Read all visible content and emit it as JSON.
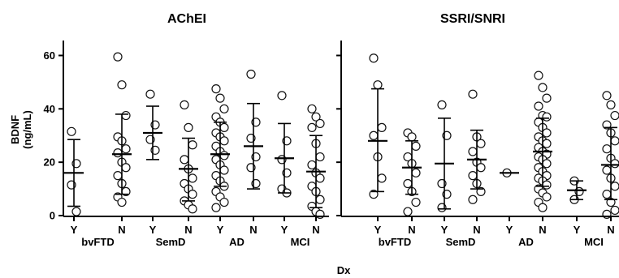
{
  "chart_data": {
    "type": "scatter",
    "ylabel_lines": [
      "BDNF",
      "(ng/mL)"
    ],
    "xlabel": "Dx",
    "ylim": [
      0,
      65
    ],
    "yticks": [
      0,
      20,
      40,
      60
    ],
    "panels": [
      {
        "title": "AChEI",
        "groups": [
          {
            "dx": "bvFTD",
            "status": "Y",
            "mean": 16,
            "sd_low": 3.5,
            "sd_high": 28.5,
            "values": [
              31.5,
              19.5,
              11.5,
              1.5
            ]
          },
          {
            "dx": "bvFTD",
            "status": "N",
            "mean": 23,
            "sd_low": 8,
            "sd_high": 38,
            "values": [
              59.5,
              49,
              37.5,
              29.5,
              28,
              25,
              23.5,
              20,
              18,
              15,
              12,
              9,
              7,
              5
            ]
          },
          {
            "dx": "SemD",
            "status": "Y",
            "mean": 31,
            "sd_low": 21,
            "sd_high": 41,
            "values": [
              45.5,
              34,
              28.5,
              24.5
            ]
          },
          {
            "dx": "SemD",
            "status": "N",
            "mean": 17.5,
            "sd_low": 5.5,
            "sd_high": 29,
            "values": [
              41.5,
              33,
              26.5,
              21,
              17.5,
              14,
              12,
              10,
              8,
              5.5,
              4,
              2.5
            ]
          },
          {
            "dx": "AD",
            "status": "Y",
            "mean": 23,
            "sd_low": 11,
            "sd_high": 35,
            "values": [
              47.5,
              44,
              40,
              37,
              35,
              33,
              31,
              29.5,
              28,
              26,
              24,
              22.5,
              21,
              19,
              17,
              15,
              13,
              11,
              9,
              7,
              5,
              3
            ]
          },
          {
            "dx": "AD",
            "status": "N",
            "mean": 26,
            "sd_low": 10,
            "sd_high": 42,
            "values": [
              53,
              35,
              29,
              22,
              18,
              12
            ]
          },
          {
            "dx": "MCI",
            "status": "Y",
            "mean": 21.5,
            "sd_low": 8.5,
            "sd_high": 34.5,
            "values": [
              45,
              28,
              21,
              16,
              10,
              8.5
            ]
          },
          {
            "dx": "MCI",
            "status": "N",
            "mean": 16.5,
            "sd_low": 3,
            "sd_high": 30,
            "values": [
              40,
              37,
              34.5,
              33,
              27,
              22,
              19,
              16,
              14,
              11,
              9,
              6,
              3.5,
              1.5,
              0.5
            ]
          }
        ]
      },
      {
        "title": "SSRI/SNRI",
        "groups": [
          {
            "dx": "bvFTD",
            "status": "Y",
            "mean": 28,
            "sd_low": 9,
            "sd_high": 47.5,
            "values": [
              59,
              49,
              33,
              30,
              22,
              14,
              8
            ]
          },
          {
            "dx": "bvFTD",
            "status": "N",
            "mean": 18,
            "sd_low": 8,
            "sd_high": 28,
            "values": [
              31,
              29.5,
              26,
              22,
              19.5,
              16,
              12,
              9,
              5,
              1.5
            ]
          },
          {
            "dx": "SemD",
            "status": "Y",
            "mean": 19.5,
            "sd_low": 2.5,
            "sd_high": 36.5,
            "values": [
              41.5,
              30,
              12,
              8,
              3
            ]
          },
          {
            "dx": "SemD",
            "status": "N",
            "mean": 21,
            "sd_low": 10,
            "sd_high": 32,
            "values": [
              45.5,
              29.5,
              27,
              24,
              20,
              18,
              15,
              12,
              9,
              6
            ]
          },
          {
            "dx": "AD",
            "status": "Y",
            "mean": 16,
            "sd_low": null,
            "sd_high": null,
            "values": [
              16
            ]
          },
          {
            "dx": "AD",
            "status": "N",
            "mean": 24,
            "sd_low": 11,
            "sd_high": 36.5,
            "values": [
              52.5,
              48,
              44,
              41,
              37.5,
              37,
              35,
              33,
              31,
              29.5,
              28,
              27,
              25.5,
              24,
              23,
              22,
              21,
              19.5,
              18,
              16.5,
              15,
              14,
              13,
              11.5,
              10,
              8.5,
              7,
              5,
              3
            ]
          },
          {
            "dx": "MCI",
            "status": "Y",
            "mean": 9.5,
            "sd_low": 6,
            "sd_high": 13,
            "values": [
              13,
              9,
              6
            ]
          },
          {
            "dx": "MCI",
            "status": "N",
            "mean": 19,
            "sd_low": 6,
            "sd_high": 33,
            "values": [
              45,
              41.5,
              37.5,
              34,
              31,
              28,
              25,
              21.5,
              19.5,
              17,
              14,
              11,
              8,
              5,
              2,
              0.5
            ]
          }
        ]
      }
    ]
  }
}
